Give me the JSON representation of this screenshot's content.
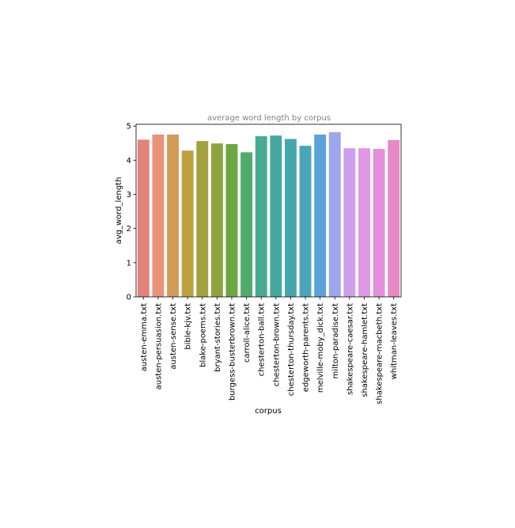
{
  "chart_data": {
    "type": "bar",
    "title": "average word length by corpus",
    "xlabel": "corpus",
    "ylabel": "avg_word_length",
    "ylim": [
      0,
      5.05
    ],
    "yticks": [
      0,
      1,
      2,
      3,
      4,
      5
    ],
    "grid": false,
    "categories": [
      "austen-emma.txt",
      "austen-persuasion.txt",
      "austen-sense.txt",
      "bible-kjv.txt",
      "blake-poems.txt",
      "bryant-stories.txt",
      "burgess-busterbrown.txt",
      "carroll-alice.txt",
      "chesterton-ball.txt",
      "chesterton-brown.txt",
      "chesterton-thursday.txt",
      "edgeworth-parents.txt",
      "melville-moby_dick.txt",
      "milton-paradise.txt",
      "shakespeare-caesar.txt",
      "shakespeare-hamlet.txt",
      "shakespeare-macbeth.txt",
      "whitman-leaves.txt"
    ],
    "values": [
      4.6,
      4.75,
      4.75,
      4.28,
      4.56,
      4.49,
      4.47,
      4.23,
      4.7,
      4.72,
      4.62,
      4.42,
      4.75,
      4.82,
      4.35,
      4.35,
      4.33,
      4.59
    ],
    "colors": [
      "#e1837a",
      "#e8927a",
      "#d49a58",
      "#c09f3e",
      "#a3a03e",
      "#8fa43d",
      "#6da744",
      "#52ab6d",
      "#47aa91",
      "#45a89f",
      "#46a7ab",
      "#4aa5bb",
      "#5ba2d9",
      "#9ea6ec",
      "#cd9fea",
      "#de98e6",
      "#e48fdb",
      "#e78bc7"
    ]
  }
}
